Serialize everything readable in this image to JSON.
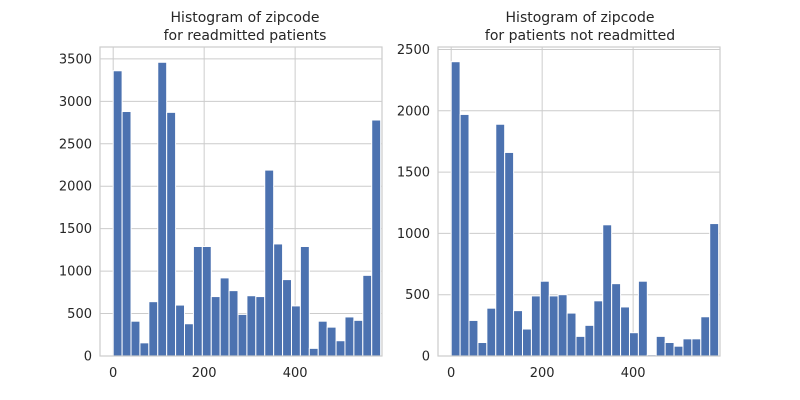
{
  "colors": {
    "bar": "#4c72b0",
    "grid": "#cccccc",
    "frame": "#cccccc",
    "text": "#262626",
    "background": "#ffffff"
  },
  "chart_data": [
    {
      "type": "bar",
      "title": [
        "Histogram of zipcode",
        "for readmitted patients"
      ],
      "xlabel": "",
      "ylabel": "",
      "xlim": [
        -29,
        591
      ],
      "ylim": [
        0,
        3640
      ],
      "x_ticks": [
        0,
        200,
        400
      ],
      "x_tick_labels": [
        "0",
        "200",
        "400"
      ],
      "y_ticks": [
        0,
        500,
        1000,
        1500,
        2000,
        2500,
        3000,
        3500
      ],
      "y_tick_labels": [
        "0",
        "500",
        "1000",
        "1500",
        "2000",
        "2500",
        "3000",
        "3500"
      ],
      "bin_start": 0,
      "bin_width": 19.6,
      "values": [
        3360,
        2880,
        410,
        155,
        640,
        3460,
        2870,
        600,
        380,
        1290,
        1290,
        700,
        920,
        770,
        490,
        710,
        700,
        2190,
        1320,
        900,
        590,
        1290,
        90,
        410,
        340,
        180,
        460,
        420,
        950,
        2780
      ]
    },
    {
      "type": "bar",
      "title": [
        "Histogram of zipcode",
        "for patients not readmitted"
      ],
      "xlabel": "",
      "ylabel": "",
      "xlim": [
        -29,
        591
      ],
      "ylim": [
        0,
        2520
      ],
      "x_ticks": [
        0,
        200,
        400
      ],
      "x_tick_labels": [
        "0",
        "200",
        "400"
      ],
      "y_ticks": [
        0,
        500,
        1000,
        1500,
        2000,
        2500
      ],
      "y_tick_labels": [
        "0",
        "500",
        "1000",
        "1500",
        "2000",
        "2500"
      ],
      "bin_start": 0,
      "bin_width": 19.6,
      "values": [
        2400,
        1970,
        290,
        110,
        390,
        1890,
        1660,
        370,
        220,
        490,
        610,
        490,
        500,
        350,
        160,
        250,
        450,
        1070,
        590,
        400,
        190,
        610,
        10,
        160,
        110,
        80,
        140,
        140,
        320,
        1080
      ]
    }
  ]
}
